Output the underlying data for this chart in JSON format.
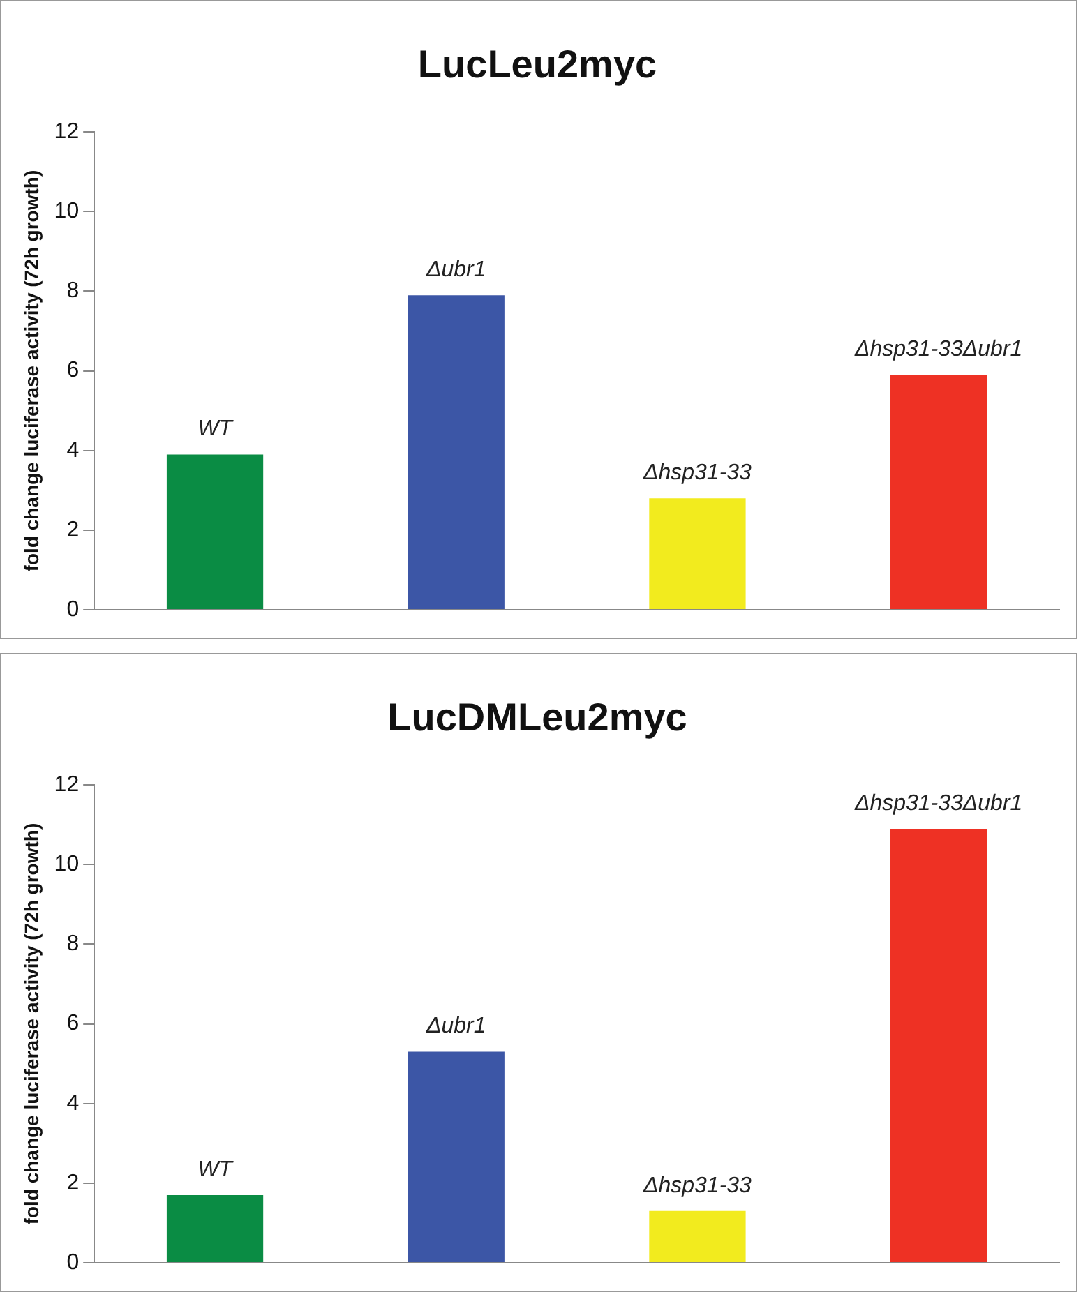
{
  "chart_data": [
    {
      "type": "bar",
      "title": "LucLeu2myc",
      "ylabel": "fold change luciferase activity (72h growth)",
      "categories": [
        "WT",
        "Δubr1",
        "Δhsp31-33",
        "Δhsp31-33Δubr1"
      ],
      "values": [
        3.9,
        7.9,
        2.8,
        5.9
      ],
      "colors": [
        "#0a8c44",
        "#3c56a6",
        "#f2eb1e",
        "#ee3124"
      ],
      "ylim": [
        0,
        12
      ],
      "yticks": [
        0,
        2,
        4,
        6,
        8,
        10,
        12
      ],
      "grid": false,
      "legend": false
    },
    {
      "type": "bar",
      "title": "LucDMLeu2myc",
      "ylabel": "fold change luciferase activity (72h growth)",
      "categories": [
        "WT",
        "Δubr1",
        "Δhsp31-33",
        "Δhsp31-33Δubr1"
      ],
      "values": [
        1.7,
        5.3,
        1.3,
        10.9
      ],
      "colors": [
        "#0a8c44",
        "#3c56a6",
        "#f2eb1e",
        "#ee3124"
      ],
      "ylim": [
        0,
        12
      ],
      "yticks": [
        0,
        2,
        4,
        6,
        8,
        10,
        12
      ],
      "grid": false,
      "legend": false
    }
  ]
}
